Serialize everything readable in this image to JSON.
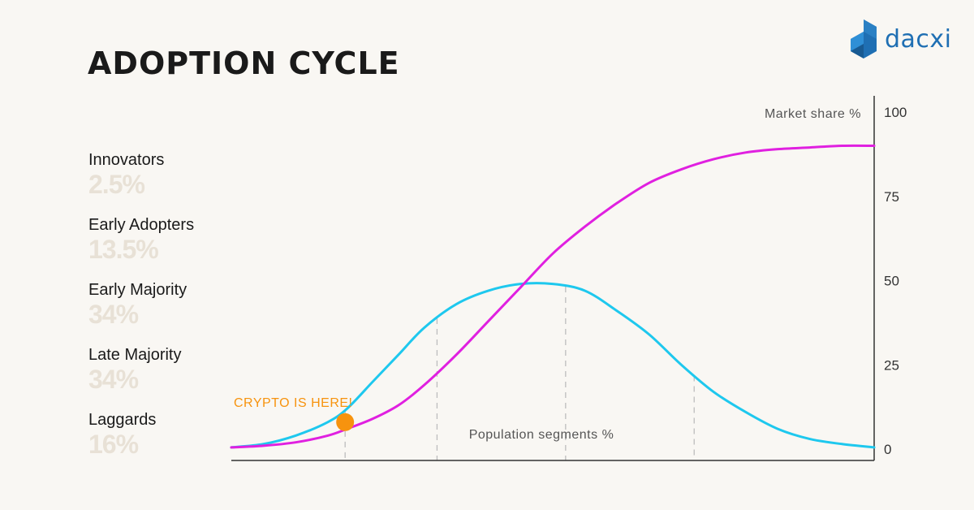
{
  "title": "ADOPTION CYCLE",
  "logo": {
    "text": "dacxi",
    "color": "#1f6fb3",
    "icon": "dacxi-logo-icon"
  },
  "segments": [
    {
      "name": "Innovators",
      "pct": "2.5%"
    },
    {
      "name": "Early Adopters",
      "pct": "13.5%"
    },
    {
      "name": "Early Majority",
      "pct": "34%"
    },
    {
      "name": "Late Majority",
      "pct": "34%"
    },
    {
      "name": "Laggards",
      "pct": "16%"
    }
  ],
  "colors": {
    "bell": "#1ec8ee",
    "cumulative": "#e020e0",
    "marker": "#f7930e",
    "axis": "#333333",
    "divider": "#bdbdbd",
    "pct_text": "#e8e1d6"
  },
  "chart_data": {
    "type": "line",
    "y_axis_label": "Market share %",
    "x_axis_label": "Population segments %",
    "y_ticks": [
      0,
      25,
      50,
      75,
      100
    ],
    "ylim": [
      0,
      100
    ],
    "xlim": [
      0,
      100
    ],
    "series": [
      {
        "key": "bell",
        "x": [
          0,
          5,
          10,
          15,
          18,
          22,
          26,
          30,
          35,
          40,
          45,
          50,
          55,
          60,
          65,
          70,
          75,
          80,
          85,
          90,
          95,
          100
        ],
        "values": [
          0.5,
          1.5,
          4,
          8,
          12,
          20,
          28,
          36,
          43,
          47,
          49,
          49,
          47,
          41,
          34,
          25,
          17,
          11,
          6,
          3,
          1.5,
          0.5
        ]
      },
      {
        "key": "cumulative",
        "x": [
          0,
          5,
          10,
          15,
          18,
          22,
          26,
          30,
          35,
          40,
          45,
          50,
          55,
          60,
          65,
          70,
          75,
          80,
          85,
          90,
          95,
          100
        ],
        "values": [
          0.5,
          1,
          2,
          4,
          6,
          9,
          13,
          19,
          28,
          38,
          48,
          58,
          66,
          73,
          79,
          83,
          86,
          88,
          89,
          89.5,
          90,
          90
        ]
      }
    ],
    "dividers_x": [
      17.7,
      32,
      52,
      72
    ],
    "annotation": {
      "text": "CRYPTO IS HERE!",
      "x": 17.7,
      "y": 8
    },
    "grid": false
  }
}
